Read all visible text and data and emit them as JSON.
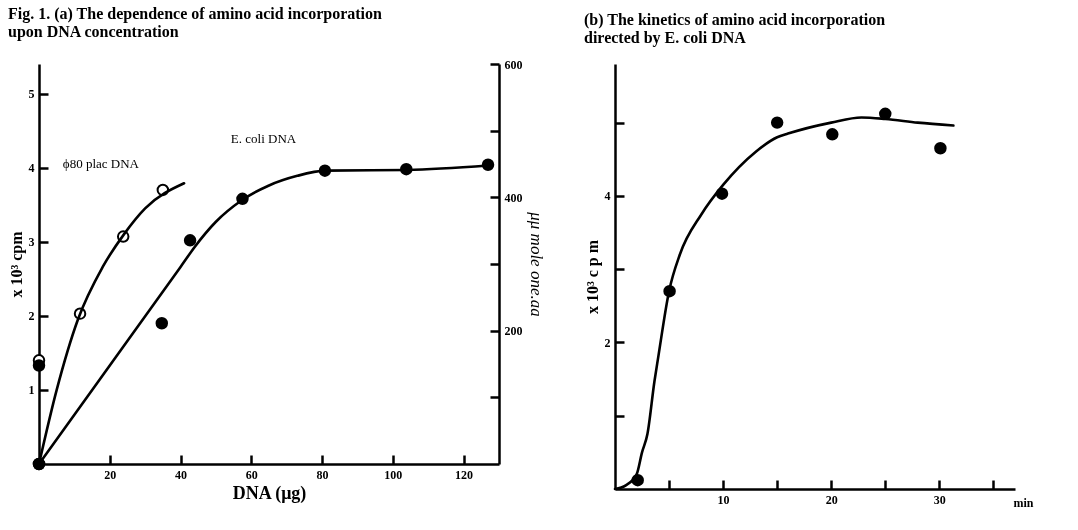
{
  "chart_data": [
    {
      "type": "scatter",
      "title": "Fig. 1.  (a) The dependence of amino acid incorporation\n upon DNA concentration",
      "xlabel": "DNA (μg)",
      "ylabel": "x 10³ cpm",
      "y2label": "μμ mole one.aa",
      "xlim": [
        0,
        130
      ],
      "xticks": [
        20,
        40,
        60,
        80,
        100,
        120
      ],
      "ylim": [
        0,
        5.4
      ],
      "yticks": [
        1,
        2,
        3,
        4,
        5
      ],
      "y2lim": [
        0,
        600
      ],
      "y2ticks": [
        {
          "value": 100,
          "label": null
        },
        200,
        {
          "value": 300,
          "label": null
        },
        400,
        {
          "value": 500,
          "label": null
        },
        600
      ],
      "grid": false,
      "series": [
        {
          "name": "ϕ80 plac DNA",
          "marker": "circle",
          "color": "#ffffff",
          "x": [
            0,
            0,
            11.6,
            23.8,
            35
          ],
          "values": [
            0,
            1.4,
            2.03,
            3.07,
            3.7
          ]
        },
        {
          "name": "E. coli DNA",
          "marker": "circle",
          "color": "#000000",
          "x": [
            0,
            0,
            34.7,
            42.7,
            57.5,
            80.8,
            103.8,
            126.9
          ],
          "values": [
            0,
            1.33,
            1.9,
            3.02,
            3.58,
            3.96,
            3.98,
            4.04
          ]
        },
        {
          "type": "line",
          "color": "#000000",
          "x": [
            0,
            5,
            11,
            18,
            24,
            30,
            41
          ],
          "values": [
            0,
            1.0,
            1.95,
            2.66,
            3.1,
            3.45,
            3.79
          ]
        },
        {
          "type": "line",
          "color": "#000000",
          "x": [
            0,
            40,
            44,
            50,
            57,
            65,
            73,
            81,
            104,
            127
          ],
          "values": [
            0,
            2.66,
            2.93,
            3.27,
            3.55,
            3.76,
            3.89,
            3.96,
            3.97,
            4.03
          ]
        }
      ]
    },
    {
      "type": "scatter",
      "title": "(b) The kinetics of amino acid incorporation\ndirected by E. coli DNA",
      "xlabel": "min",
      "ylabel": "x 10³ c p m",
      "xlim": [
        0,
        37
      ],
      "xticks": [
        {
          "value": 5,
          "label": null
        },
        10,
        {
          "value": 15,
          "label": null
        },
        20,
        {
          "value": 25,
          "label": null
        },
        30,
        {
          "value": 35,
          "label": null
        }
      ],
      "ylim": [
        0,
        5.8
      ],
      "yticks": [
        {
          "value": 1,
          "label": null
        },
        2,
        {
          "value": 3,
          "label": null
        },
        4,
        {
          "value": 5,
          "label": null
        }
      ],
      "grid": false,
      "series": [
        {
          "marker": "circle",
          "color": "#000000",
          "x": [
            2.1,
            5.05,
            9.9,
            15,
            20.1,
            25,
            30.1
          ],
          "values": [
            0.12,
            2.7,
            4.03,
            5.0,
            4.84,
            5.12,
            4.65
          ]
        },
        {
          "type": "line",
          "color": "#000000",
          "x": [
            0,
            1,
            2,
            2.5,
            3,
            3.65,
            4,
            5,
            6,
            8,
            10,
            13,
            15,
            16,
            20,
            22.8,
            25,
            28,
            31.3
          ],
          "values": [
            0,
            0.05,
            0.2,
            0.5,
            0.75,
            1.47,
            1.8,
            2.7,
            3.2,
            3.75,
            4.15,
            4.6,
            4.8,
            4.85,
            5.0,
            5.07,
            5.05,
            5.0,
            4.96
          ]
        }
      ]
    }
  ]
}
